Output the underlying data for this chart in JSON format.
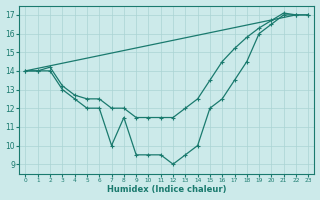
{
  "line1_x": [
    0,
    1,
    2,
    3,
    4,
    5,
    6,
    7,
    8,
    9,
    10,
    11,
    12,
    13,
    14,
    15,
    16,
    17,
    18,
    19,
    20,
    21,
    22,
    23
  ],
  "line1_y": [
    14,
    14,
    14,
    13,
    12.5,
    12,
    12,
    10,
    11.5,
    9.5,
    9.5,
    9.5,
    9,
    9.5,
    10,
    12,
    12.5,
    13.5,
    14.5,
    16,
    16.5,
    17,
    17,
    17
  ],
  "line2_x": [
    0,
    1,
    2,
    3,
    4,
    5,
    6,
    7,
    8,
    9,
    10,
    11,
    12,
    13,
    14,
    15,
    16,
    17,
    18,
    19,
    20,
    21,
    22,
    23
  ],
  "line2_y": [
    14,
    14,
    14.2,
    13.2,
    12.7,
    12.5,
    12.5,
    12,
    12,
    11.5,
    11.5,
    11.5,
    11.5,
    12,
    12.5,
    13.5,
    14.5,
    15.2,
    15.8,
    16.3,
    16.7,
    17.1,
    17,
    17
  ],
  "line3_x": [
    0,
    22
  ],
  "line3_y": [
    14,
    17
  ],
  "color": "#1a7a6e",
  "bg_color": "#cceaea",
  "grid_color": "#aad4d4",
  "xlabel": "Humidex (Indice chaleur)",
  "ylim": [
    8.5,
    17.5
  ],
  "xlim": [
    -0.5,
    23.5
  ],
  "yticks": [
    9,
    10,
    11,
    12,
    13,
    14,
    15,
    16,
    17
  ],
  "xticks": [
    0,
    1,
    2,
    3,
    4,
    5,
    6,
    7,
    8,
    9,
    10,
    11,
    12,
    13,
    14,
    15,
    16,
    17,
    18,
    19,
    20,
    21,
    22,
    23
  ]
}
